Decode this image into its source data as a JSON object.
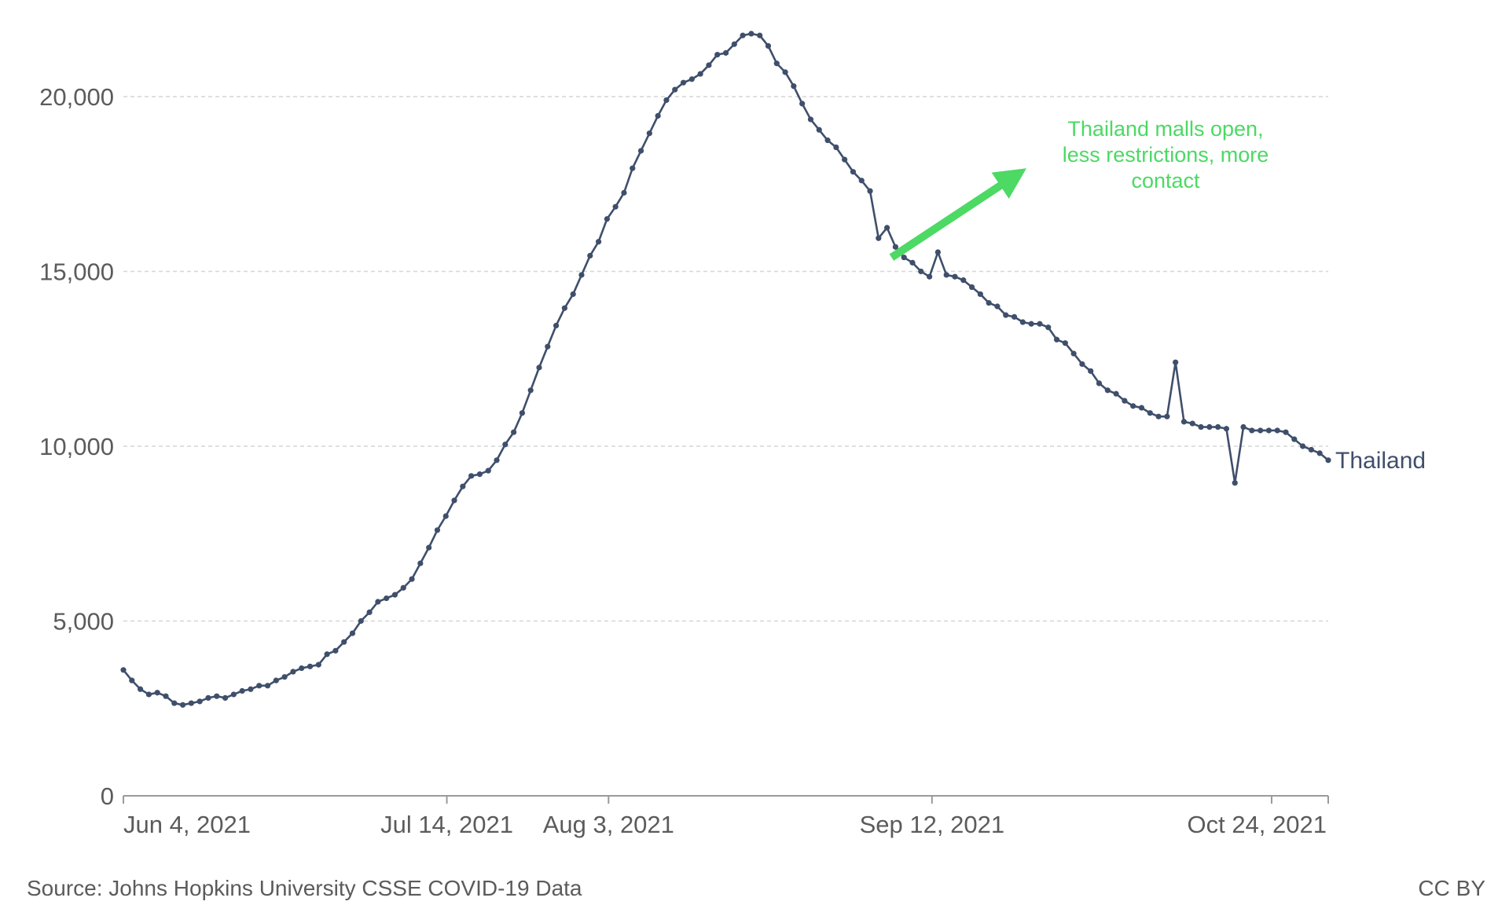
{
  "chart_data": {
    "type": "line",
    "title": "",
    "xlabel": "",
    "ylabel": "",
    "x_start": "2021-06-04",
    "x_end": "2021-10-31",
    "xlim": [
      "2021-06-04",
      "2021-10-31"
    ],
    "ylim": [
      0,
      22000
    ],
    "y_ticks": [
      0,
      5000,
      10000,
      15000,
      20000
    ],
    "y_tick_labels": [
      "0",
      "5,000",
      "10,000",
      "15,000",
      "20,000"
    ],
    "x_ticks": [
      "2021-06-04",
      "2021-07-14",
      "2021-08-03",
      "2021-09-12",
      "2021-10-24"
    ],
    "x_tick_labels": [
      "Jun 4, 2021",
      "Jul 14, 2021",
      "Aug 3, 2021",
      "Sep 12, 2021",
      "Oct 24, 2021"
    ],
    "grid": true,
    "series": [
      {
        "name": "Thailand",
        "color": "#3f4f6b",
        "values": [
          3600,
          3300,
          3050,
          2900,
          2950,
          2850,
          2650,
          2600,
          2650,
          2700,
          2800,
          2850,
          2800,
          2900,
          3000,
          3050,
          3150,
          3150,
          3300,
          3400,
          3550,
          3650,
          3700,
          3750,
          4050,
          4150,
          4400,
          4650,
          5000,
          5250,
          5550,
          5650,
          5750,
          5950,
          6200,
          6650,
          7100,
          7600,
          8000,
          8450,
          8850,
          9150,
          9200,
          9300,
          9600,
          10050,
          10400,
          10950,
          11600,
          12250,
          12850,
          13450,
          13950,
          14350,
          14900,
          15450,
          15850,
          16500,
          16850,
          17250,
          17950,
          18450,
          18950,
          19450,
          19900,
          20200,
          20400,
          20500,
          20650,
          20900,
          21200,
          21250,
          21500,
          21750,
          21800,
          21750,
          21450,
          20950,
          20700,
          20300,
          19800,
          19350,
          19050,
          18750,
          18550,
          18200,
          17850,
          17600,
          17300,
          15950,
          16250,
          15700,
          15400,
          15250,
          15000,
          14850,
          15550,
          14900,
          14850,
          14750,
          14550,
          14350,
          14100,
          14000,
          13750,
          13700,
          13550,
          13500,
          13500,
          13400,
          13050,
          12950,
          12650,
          12350,
          12150,
          11800,
          11600,
          11500,
          11300,
          11150,
          11100,
          10950,
          10850,
          10850,
          12400,
          10700,
          10650,
          10550,
          10550,
          10550,
          10500,
          8950,
          10550,
          10450,
          10450,
          10450,
          10450,
          10400,
          10200,
          10000,
          9900,
          9800,
          9600
        ]
      }
    ],
    "annotations": [
      {
        "lines": [
          "Thailand malls open,",
          "less restrictions, more",
          "contact"
        ],
        "color": "#4cd964",
        "arrow_from": [
          "2021-09-07",
          15400
        ],
        "arrow_to": [
          "2021-09-24",
          18000
        ]
      }
    ]
  },
  "footer": {
    "source": "Source: Johns Hopkins University CSSE COVID-19 Data",
    "license": "CC BY"
  }
}
